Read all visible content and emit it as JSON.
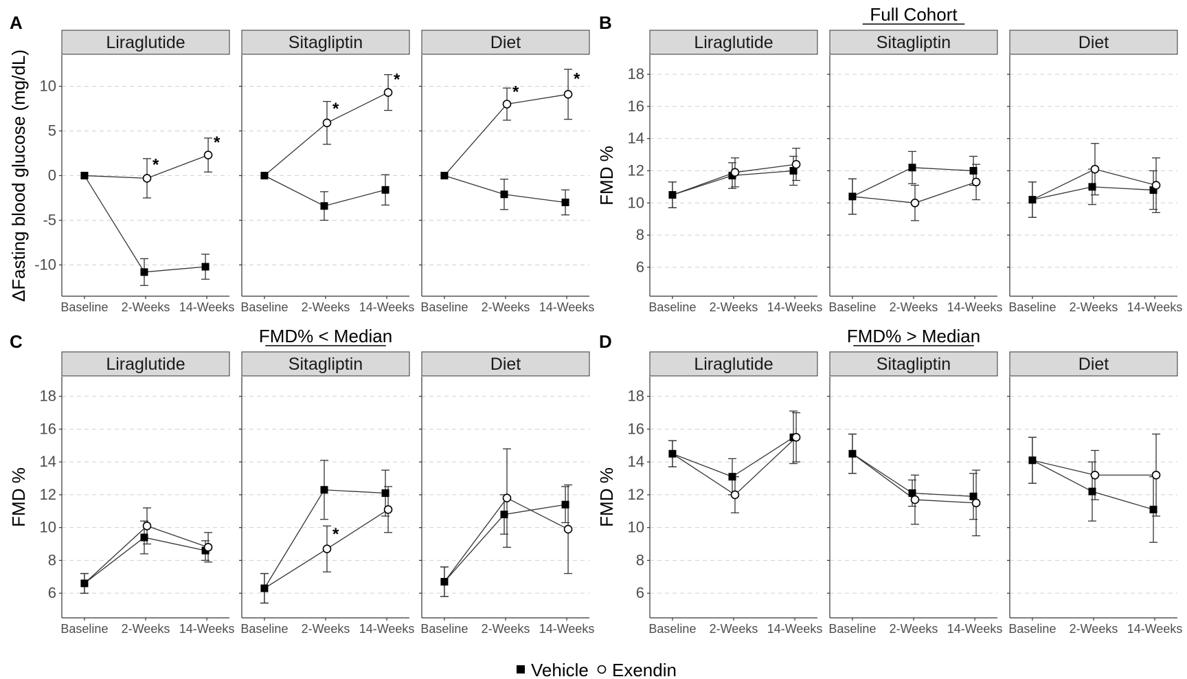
{
  "legend": {
    "vehicle": "Vehicle",
    "exendin": "Exendin"
  },
  "x_categories": [
    "Baseline",
    "2-Weeks",
    "14-Weeks"
  ],
  "chart_data": [
    {
      "id": "A",
      "panel_label": "A",
      "title": "",
      "type": "line",
      "ylabel": "ΔFasting blood glucose (mg/dL)",
      "ylim": [
        -13.5,
        13.5
      ],
      "yticks": [
        -10,
        -5,
        0,
        5,
        10
      ],
      "facets": [
        {
          "name": "Liraglutide",
          "vehicle": {
            "y": [
              0,
              -10.8,
              -10.2
            ],
            "err": [
              0,
              1.5,
              1.4
            ]
          },
          "exendin": {
            "y": [
              0,
              -0.3,
              2.3
            ],
            "err": [
              0,
              2.2,
              1.9
            ]
          },
          "stars": [
            false,
            true,
            true
          ]
        },
        {
          "name": "Sitagliptin",
          "vehicle": {
            "y": [
              0,
              -3.4,
              -1.6
            ],
            "err": [
              0,
              1.6,
              1.7
            ]
          },
          "exendin": {
            "y": [
              0,
              5.9,
              9.3
            ],
            "err": [
              0,
              2.4,
              2.0
            ]
          },
          "stars": [
            false,
            true,
            true
          ]
        },
        {
          "name": "Diet",
          "vehicle": {
            "y": [
              0,
              -2.1,
              -3.0
            ],
            "err": [
              0,
              1.7,
              1.4
            ]
          },
          "exendin": {
            "y": [
              0,
              8.0,
              9.1
            ],
            "err": [
              0,
              1.8,
              2.8
            ]
          },
          "stars": [
            false,
            true,
            true
          ]
        }
      ]
    },
    {
      "id": "B",
      "panel_label": "B",
      "title": "Full Cohort",
      "type": "line",
      "ylabel": "FMD %",
      "ylim": [
        4.2,
        19.2
      ],
      "yticks": [
        6,
        8,
        10,
        12,
        14,
        16,
        18
      ],
      "facets": [
        {
          "name": "Liraglutide",
          "vehicle": {
            "y": [
              10.5,
              11.7,
              12.0
            ],
            "err": [
              0.8,
              0.8,
              0.9
            ]
          },
          "exendin": {
            "y": [
              10.5,
              11.9,
              12.4
            ],
            "err": [
              0.8,
              0.9,
              1.0
            ]
          },
          "stars": [
            false,
            false,
            false
          ]
        },
        {
          "name": "Sitagliptin",
          "vehicle": {
            "y": [
              10.4,
              12.2,
              12.0
            ],
            "err": [
              1.1,
              1.0,
              0.9
            ]
          },
          "exendin": {
            "y": [
              10.4,
              10.0,
              11.3
            ],
            "err": [
              1.1,
              1.1,
              1.1
            ]
          },
          "stars": [
            false,
            false,
            false
          ]
        },
        {
          "name": "Diet",
          "vehicle": {
            "y": [
              10.2,
              11.0,
              10.8
            ],
            "err": [
              1.1,
              1.1,
              1.2
            ]
          },
          "exendin": {
            "y": [
              10.2,
              12.1,
              11.1
            ],
            "err": [
              1.1,
              1.6,
              1.7
            ]
          },
          "stars": [
            false,
            false,
            false
          ]
        }
      ]
    },
    {
      "id": "C",
      "panel_label": "C",
      "title": "FMD% < Median",
      "type": "line",
      "ylabel": "FMD %",
      "ylim": [
        4.5,
        19.2
      ],
      "yticks": [
        6,
        8,
        10,
        12,
        14,
        16,
        18
      ],
      "facets": [
        {
          "name": "Liraglutide",
          "vehicle": {
            "y": [
              6.6,
              9.4,
              8.6
            ],
            "err": [
              0.6,
              1.0,
              0.6
            ]
          },
          "exendin": {
            "y": [
              6.6,
              10.1,
              8.8
            ],
            "err": [
              0.6,
              1.1,
              0.9
            ]
          },
          "stars": [
            false,
            false,
            false
          ]
        },
        {
          "name": "Sitagliptin",
          "vehicle": {
            "y": [
              6.3,
              12.3,
              12.1
            ],
            "err": [
              0.9,
              1.8,
              1.4
            ]
          },
          "exendin": {
            "y": [
              6.3,
              8.7,
              11.1
            ],
            "err": [
              0.9,
              1.4,
              1.4
            ]
          },
          "stars": [
            false,
            true,
            false
          ]
        },
        {
          "name": "Diet",
          "vehicle": {
            "y": [
              6.7,
              10.8,
              11.4
            ],
            "err": [
              0.9,
              1.2,
              1.1
            ]
          },
          "exendin": {
            "y": [
              6.7,
              11.8,
              9.9
            ],
            "err": [
              0.9,
              3.0,
              2.7
            ]
          },
          "stars": [
            false,
            false,
            false
          ]
        }
      ]
    },
    {
      "id": "D",
      "panel_label": "D",
      "title": "FMD% > Median",
      "type": "line",
      "ylabel": "FMD %",
      "ylim": [
        4.5,
        19.2
      ],
      "yticks": [
        6,
        8,
        10,
        12,
        14,
        16,
        18
      ],
      "facets": [
        {
          "name": "Liraglutide",
          "vehicle": {
            "y": [
              14.5,
              13.1,
              15.5
            ],
            "err": [
              0.8,
              1.1,
              1.6
            ]
          },
          "exendin": {
            "y": [
              14.5,
              12.0,
              15.5
            ],
            "err": [
              0.8,
              1.1,
              1.5
            ]
          },
          "stars": [
            false,
            false,
            false
          ]
        },
        {
          "name": "Sitagliptin",
          "vehicle": {
            "y": [
              14.5,
              12.1,
              11.9
            ],
            "err": [
              1.2,
              0.8,
              1.4
            ]
          },
          "exendin": {
            "y": [
              14.5,
              11.7,
              11.5
            ],
            "err": [
              1.2,
              1.5,
              2.0
            ]
          },
          "stars": [
            false,
            false,
            false
          ]
        },
        {
          "name": "Diet",
          "vehicle": {
            "y": [
              14.1,
              12.2,
              11.1
            ],
            "err": [
              1.4,
              1.8,
              2.0
            ]
          },
          "exendin": {
            "y": [
              14.1,
              13.2,
              13.2
            ],
            "err": [
              1.4,
              1.5,
              2.5
            ]
          },
          "stars": [
            false,
            false,
            false
          ]
        }
      ]
    }
  ]
}
